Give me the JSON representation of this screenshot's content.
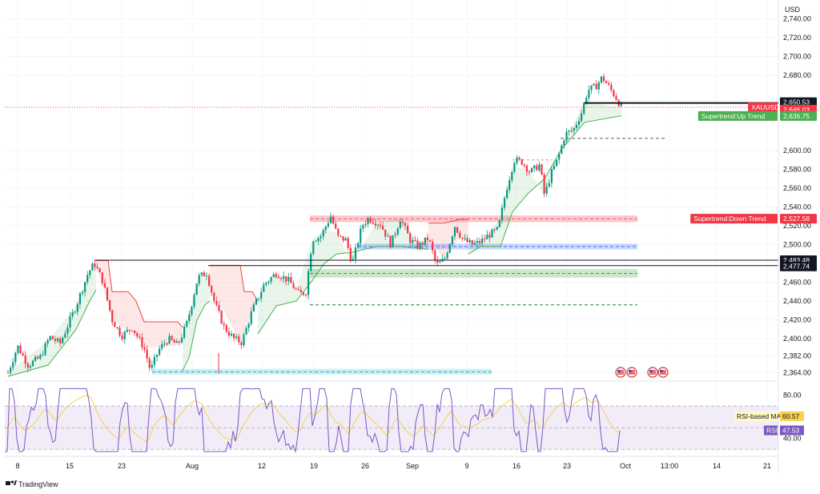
{
  "header": {
    "currency": "USD"
  },
  "symbol": "XAUUSD",
  "branding": {
    "name": "TradingView",
    "icon": "tradingview-logo-icon"
  },
  "chart_data": {
    "type": "candlestick",
    "price_axis": {
      "ylim": [
        2355,
        2760
      ],
      "ticks": [
        "2,740.00",
        "2,720.00",
        "2,700.00",
        "2,680.00",
        "2,600.00",
        "2,580.00",
        "2,560.00",
        "2,540.00",
        "2,520.00",
        "2,500.00",
        "2,460.00",
        "2,440.00",
        "2,420.00",
        "2,400.00",
        "2,382.00",
        "2,364.00"
      ],
      "tick_values": [
        2740,
        2720,
        2700,
        2680,
        2600,
        2580,
        2560,
        2540,
        2520,
        2500,
        2460,
        2440,
        2420,
        2400,
        2382,
        2364
      ]
    },
    "time_axis": {
      "labels": [
        "8",
        "15",
        "23",
        "Aug",
        "12",
        "19",
        "26",
        "Sep",
        "9",
        "16",
        "23",
        "Oct",
        "13:00",
        "14",
        "21"
      ]
    },
    "price_tags": [
      {
        "label": "2,650.53",
        "value": 2650.53,
        "style": "black"
      },
      {
        "label": "XAUUSD",
        "value": 2646.03,
        "style": "red-name"
      },
      {
        "label": "2,646.03",
        "value": 2646.03,
        "style": "red"
      },
      {
        "label": "03:35:23",
        "value": 2641.5,
        "style": "red"
      },
      {
        "label": "Supertrend:Up Trend",
        "value": 2636.75,
        "style": "green-name"
      },
      {
        "label": "2,636.75",
        "value": 2636.75,
        "style": "green"
      },
      {
        "label": "Supertrend:Down Trend",
        "value": 2527.58,
        "style": "red-name"
      },
      {
        "label": "2,527.58",
        "value": 2527.58,
        "style": "red"
      },
      {
        "label": "2,483.48",
        "value": 2483.48,
        "style": "black"
      },
      {
        "label": "2,477.74",
        "value": 2477.74,
        "style": "black"
      }
    ],
    "series": [
      {
        "name": "XAUUSD",
        "last": 2646.03
      },
      {
        "name": "Supertrend",
        "up_trend": 2636.75,
        "down_trend": 2527.58
      }
    ],
    "rsi": {
      "ylim": [
        25,
        90
      ],
      "ticks": [
        "80.00",
        "40.00"
      ],
      "tick_values": [
        80,
        40
      ],
      "band": [
        30,
        70
      ],
      "rsi_label": "RSI",
      "rsi_value": "47.53",
      "ma_label": "RSI-based MA",
      "ma_value": "60.57",
      "colors": {
        "rsi": "#7e57c2",
        "ma": "#f7d14b",
        "band": "#ede7f6"
      }
    },
    "colors": {
      "up": "#089981",
      "down": "#f23645",
      "supertrend_up": "#4caf50",
      "supertrend_down": "#f44336",
      "zone_red": "#f7a7ae",
      "zone_blue": "#aab7f5",
      "zone_green": "#b9dfbf",
      "zone_cyan": "#b2e2f3"
    }
  }
}
